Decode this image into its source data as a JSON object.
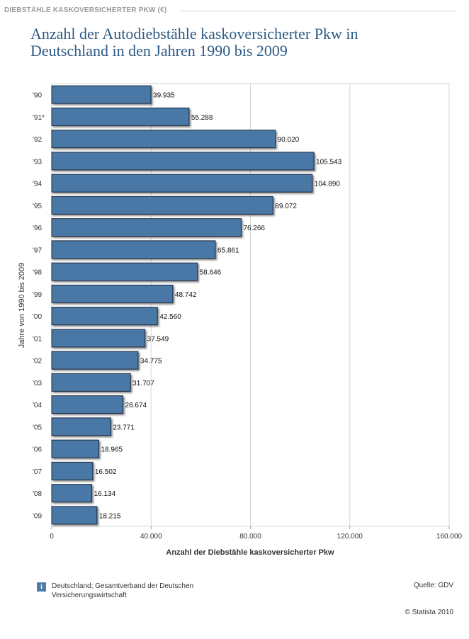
{
  "header": {
    "top_label": "DIEBSTÄHLE KASKOVERSICHERTER PKW (€)",
    "title_line1": "Anzahl der Autodiebstähle kaskoversicherter Pkw in",
    "title_line2": "Deutschland in den Jahren 1990 bis 2009"
  },
  "footer": {
    "info_icon": "i",
    "note_line1": "Deutschland; Gesamtverband der Deutschen",
    "note_line2": "Versicherungswirtschaft",
    "source": "Quelle: GDV",
    "copyright": "© Statista 2010"
  },
  "colors": {
    "bar": "#4a78a6",
    "bar_stroke": "#1b2a3a",
    "grid": "#d6d6d6",
    "title": "#2e5b85"
  },
  "chart_data": {
    "type": "bar",
    "orientation": "horizontal",
    "title": "Anzahl der Autodiebstähle kaskoversicherter Pkw in Deutschland in den Jahren 1990 bis 2009",
    "xlabel": "Anzahl der Diebstähle kaskoversicherter Pkw",
    "ylabel": "Jahre von 1990 bis 2009",
    "xlim": [
      0,
      160000
    ],
    "xticks": [
      0,
      40000,
      80000,
      120000,
      160000
    ],
    "xtick_labels": [
      "0",
      "40.000",
      "80.000",
      "120.000",
      "160.000"
    ],
    "grid": true,
    "categories": [
      "'90",
      "'91*",
      "'92",
      "'93",
      "'94",
      "'95",
      "'96",
      "'97",
      "'98",
      "'99",
      "'00",
      "'01",
      "'02",
      "'03",
      "'04",
      "'05",
      "'06",
      "'07",
      "'08",
      "'09"
    ],
    "values": [
      39935,
      55288,
      90020,
      105543,
      104890,
      89072,
      76266,
      65861,
      58646,
      48742,
      42560,
      37549,
      34775,
      31707,
      28674,
      23771,
      18965,
      16502,
      16134,
      18215
    ],
    "value_labels": [
      "39.935",
      "55.288",
      "90.020",
      "105.543",
      "104.890",
      "89.072",
      "76.266",
      "65.861",
      "58.646",
      "48.742",
      "42.560",
      "37.549",
      "34.775",
      "31.707",
      "28.674",
      "23.771",
      "18.965",
      "16.502",
      "16.134",
      "18.215"
    ]
  }
}
